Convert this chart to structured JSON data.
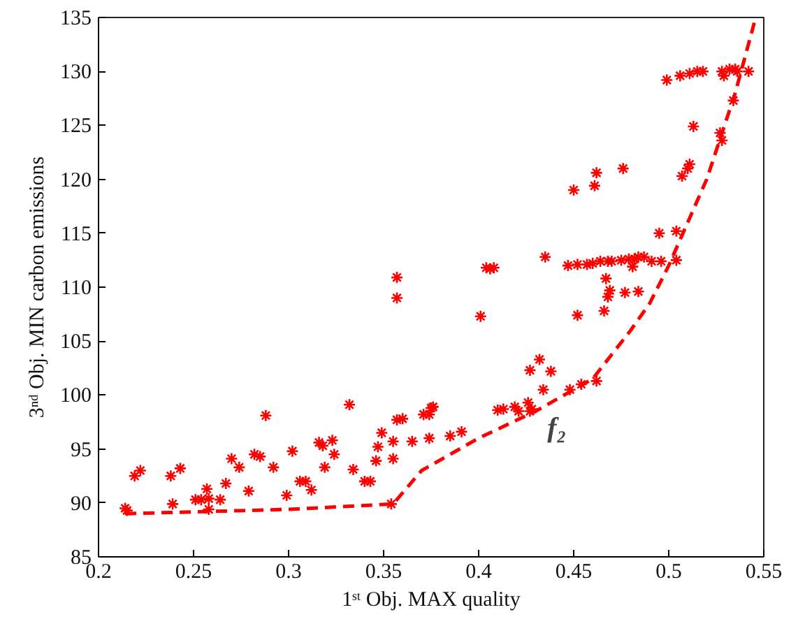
{
  "chart_data": {
    "type": "scatter",
    "xlabel": "1ˢᵗ Obj. MAX quality",
    "ylabel": "3ⁿᵈ Obj. MIN carbon emissions",
    "xlim": [
      0.2,
      0.55
    ],
    "ylim": [
      85,
      135
    ],
    "xticks": [
      0.2,
      0.25,
      0.3,
      0.35,
      0.4,
      0.45,
      0.5,
      0.55
    ],
    "yticks": [
      85,
      90,
      95,
      100,
      105,
      110,
      115,
      120,
      125,
      130,
      135
    ],
    "grid": false,
    "series": [
      {
        "marker": "cross",
        "color": "#ff0000",
        "x": [
          0.214,
          0.215,
          0.219,
          0.222,
          0.239,
          0.238,
          0.243,
          0.251,
          0.254,
          0.257,
          0.258,
          0.258,
          0.264,
          0.27,
          0.274,
          0.267,
          0.279,
          0.282,
          0.285,
          0.288,
          0.292,
          0.299,
          0.302,
          0.306,
          0.309,
          0.312,
          0.316,
          0.318,
          0.323,
          0.319,
          0.324,
          0.332,
          0.334,
          0.34,
          0.343,
          0.346,
          0.347,
          0.349,
          0.355,
          0.355,
          0.357,
          0.36,
          0.365,
          0.371,
          0.374,
          0.376,
          0.374,
          0.354,
          0.357,
          0.357,
          0.385,
          0.391,
          0.375,
          0.406,
          0.404,
          0.408,
          0.435,
          0.401,
          0.447,
          0.452,
          0.457,
          0.46,
          0.464,
          0.468,
          0.47,
          0.475,
          0.479,
          0.482,
          0.484,
          0.487,
          0.491,
          0.496,
          0.481,
          0.467,
          0.469,
          0.468,
          0.477,
          0.484,
          0.452,
          0.466,
          0.495,
          0.504,
          0.504,
          0.432,
          0.427,
          0.438,
          0.434,
          0.448,
          0.454,
          0.462,
          0.41,
          0.413,
          0.419,
          0.421,
          0.426,
          0.427,
          0.428,
          0.499,
          0.506,
          0.511,
          0.515,
          0.518,
          0.528,
          0.529,
          0.532,
          0.535,
          0.536,
          0.542,
          0.534,
          0.513,
          0.527,
          0.528,
          0.511,
          0.51,
          0.507,
          0.476,
          0.462,
          0.461,
          0.45
        ],
        "values": [
          89.5,
          89.3,
          92.5,
          93.0,
          89.9,
          92.5,
          93.2,
          90.3,
          90.3,
          91.3,
          90.4,
          89.4,
          90.3,
          94.1,
          93.3,
          91.8,
          91.1,
          94.5,
          94.3,
          98.1,
          93.3,
          90.7,
          94.8,
          92.0,
          92.0,
          91.2,
          95.6,
          95.3,
          95.8,
          93.3,
          94.5,
          99.1,
          93.1,
          92.0,
          92.0,
          93.9,
          95.2,
          96.5,
          94.1,
          95.7,
          97.7,
          97.8,
          95.7,
          98.2,
          98.2,
          98.9,
          96.0,
          89.9,
          110.9,
          109.0,
          96.2,
          96.6,
          98.8,
          111.7,
          111.8,
          111.8,
          112.8,
          107.3,
          112.0,
          112.1,
          112.1,
          112.2,
          112.4,
          112.4,
          112.4,
          112.5,
          112.6,
          112.6,
          112.8,
          112.8,
          112.4,
          112.4,
          111.9,
          110.8,
          109.7,
          109.1,
          109.5,
          109.6,
          107.4,
          107.8,
          115.0,
          115.2,
          112.5,
          103.3,
          102.3,
          102.2,
          100.5,
          100.5,
          101.0,
          101.3,
          98.6,
          98.7,
          98.9,
          98.5,
          99.3,
          98.5,
          98.7,
          129.2,
          129.6,
          129.8,
          130.0,
          130.0,
          130.0,
          129.6,
          130.2,
          130.2,
          130.0,
          130.0,
          127.3,
          124.9,
          124.3,
          123.6,
          121.4,
          121.0,
          120.3,
          121.0,
          120.6,
          119.4,
          119.0
        ]
      },
      {
        "type": "line",
        "marker": "none",
        "line_style": "dashed",
        "color": "#ff0000",
        "x": [
          0.214,
          0.3,
          0.355,
          0.37,
          0.4,
          0.43,
          0.46,
          0.48,
          0.49,
          0.5,
          0.52,
          0.535,
          0.545
        ],
        "values": [
          89.0,
          89.4,
          89.9,
          93.0,
          96.0,
          98.5,
          101.5,
          106.0,
          108.5,
          112.0,
          120.0,
          128.0,
          134.5
        ]
      }
    ],
    "annotations": [
      "f₂"
    ]
  }
}
